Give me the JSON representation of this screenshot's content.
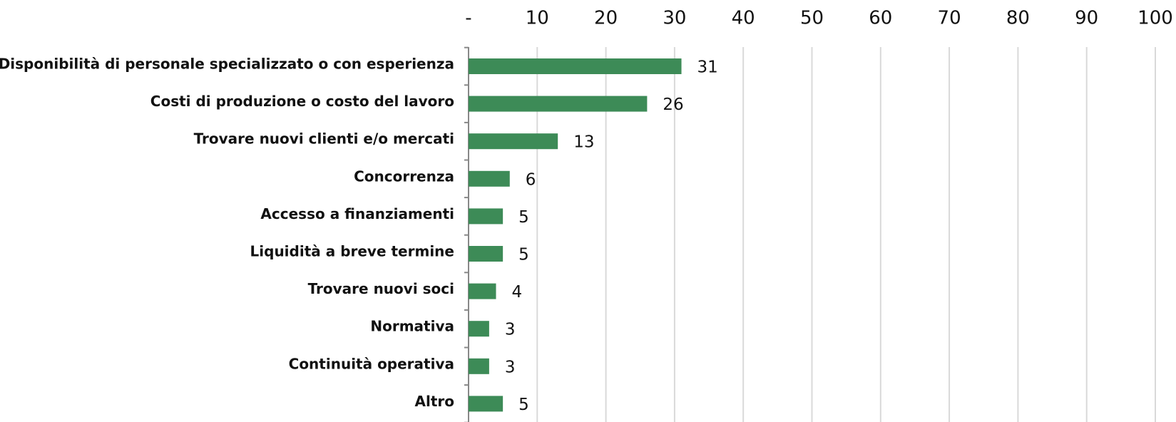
{
  "chart_data": {
    "type": "bar",
    "orientation": "horizontal",
    "categories": [
      "Disponibilità di personale specializzato o con esperienza",
      "Costi di produzione o costo del lavoro",
      "Trovare nuovi clienti e/o mercati",
      "Concorrenza",
      "Accesso a finanziamenti",
      "Liquidità a breve termine",
      "Trovare nuovi soci",
      "Normativa",
      "Continuità operativa",
      "Altro"
    ],
    "values": [
      31,
      26,
      13,
      6,
      5,
      5,
      4,
      3,
      3,
      5
    ],
    "color": "#3d8b57",
    "xlim": [
      0,
      100
    ],
    "xticks": [
      {
        "value": 0,
        "label": "-"
      },
      10,
      20,
      30,
      40,
      50,
      60,
      70,
      80,
      90,
      100
    ],
    "grid": true
  }
}
